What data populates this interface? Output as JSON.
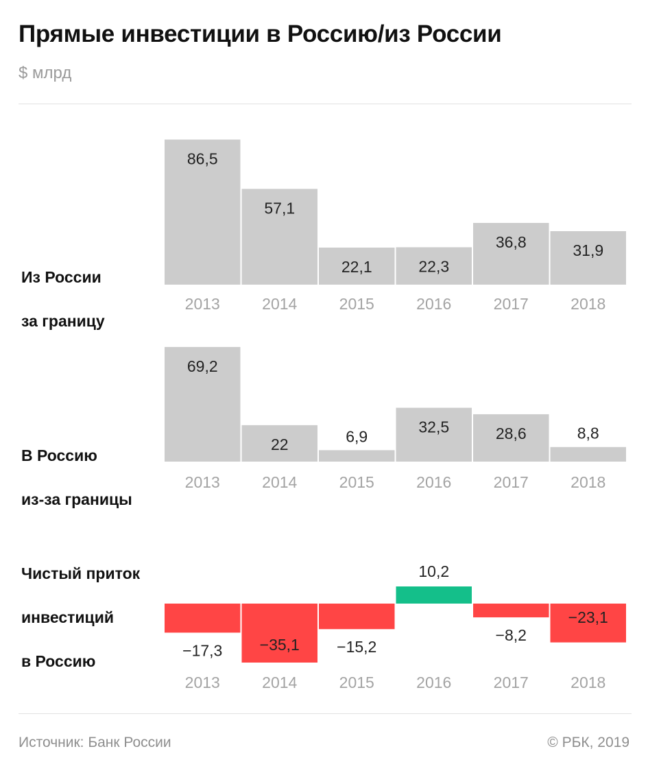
{
  "title": "Прямые инвестиции в Россию/из России",
  "subtitle": "$ млрд",
  "footer": {
    "source": "Источник: Банк России",
    "copyright": "© РБК, 2019"
  },
  "colors": {
    "neutral": "#cccccc",
    "negative": "#ff4545",
    "positive": "#14bf8a"
  },
  "chart_data": [
    {
      "type": "bar",
      "name": "outflow",
      "label_lines": [
        "Из России",
        "за границу"
      ],
      "categories": [
        "2013",
        "2014",
        "2015",
        "2016",
        "2017",
        "2018"
      ],
      "values": [
        86.5,
        57.1,
        22.1,
        22.3,
        36.8,
        31.9
      ],
      "value_labels": [
        "86,5",
        "57,1",
        "22,1",
        "22,3",
        "36,8",
        "31,9"
      ]
    },
    {
      "type": "bar",
      "name": "inflow",
      "label_lines": [
        "В Россию",
        "из-за границы"
      ],
      "categories": [
        "2013",
        "2014",
        "2015",
        "2016",
        "2017",
        "2018"
      ],
      "values": [
        69.2,
        22,
        6.9,
        32.5,
        28.6,
        8.8
      ],
      "value_labels": [
        "69,2",
        "22",
        "6,9",
        "32,5",
        "28,6",
        "8,8"
      ]
    },
    {
      "type": "bar",
      "name": "net",
      "label_lines": [
        "Чистый приток",
        "инвестиций",
        "в Россию"
      ],
      "categories": [
        "2013",
        "2014",
        "2015",
        "2016",
        "2017",
        "2018"
      ],
      "values": [
        -17.3,
        -35.1,
        -15.2,
        10.2,
        -8.2,
        -23.1
      ],
      "value_labels": [
        "−17,3",
        "−35,1",
        "−15,2",
        "10,2",
        "−8,2",
        "−23,1"
      ]
    }
  ]
}
